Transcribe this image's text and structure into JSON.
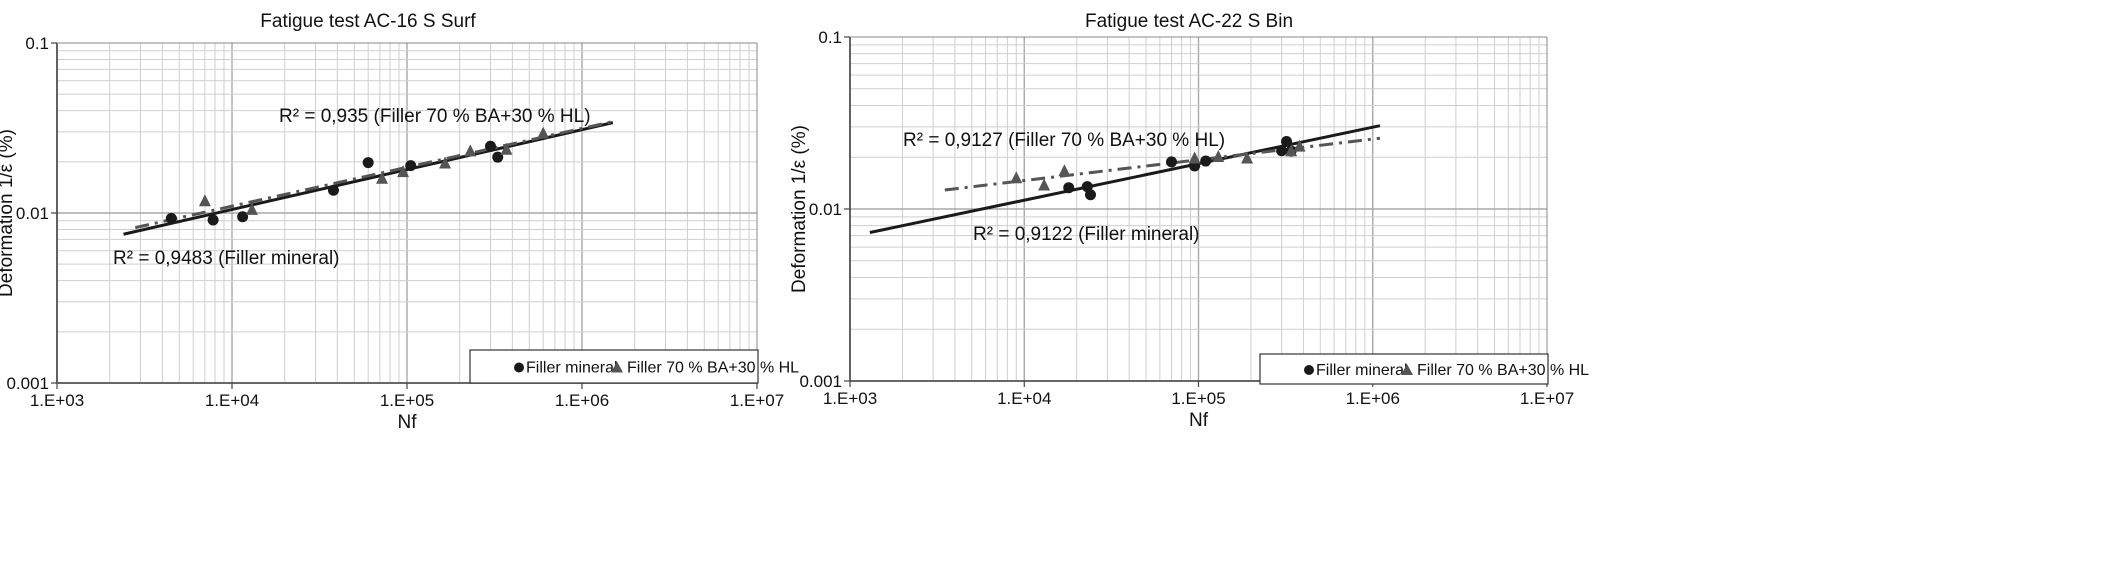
{
  "chart_data": [
    {
      "type": "scatter",
      "title": "Fatigue test   AC-16 S Surf",
      "xlabel": "Nf",
      "ylabel": "Deformation 1/ε (%)",
      "xscale": "log",
      "yscale": "log",
      "xlim": [
        1000,
        10000000
      ],
      "ylim": [
        0.001,
        0.1
      ],
      "x_ticks": [
        "1.E+03",
        "1.E+04",
        "1.E+05",
        "1.E+06",
        "1.E+07"
      ],
      "y_ticks": [
        "0.001",
        "0.01",
        "0.1"
      ],
      "grid": true,
      "legend_position": "bottom-right",
      "series": [
        {
          "name": "Filler mineral",
          "marker": "circle",
          "color": "#1a1a1a",
          "points": [
            [
              4500,
              0.0093
            ],
            [
              7800,
              0.0091
            ],
            [
              11500,
              0.0095
            ],
            [
              38000,
              0.0136
            ],
            [
              60000,
              0.0198
            ],
            [
              105000,
              0.019
            ],
            [
              300000,
              0.0247
            ],
            [
              330000,
              0.0213
            ]
          ],
          "trendline": {
            "x_start": 2400,
            "y_start": 0.0075,
            "x_end": 1500000,
            "y_end": 0.034,
            "style": "solid",
            "color": "#1a1a1a"
          },
          "r2_label": "R² = 0,9483 (Filler mineral)"
        },
        {
          "name": "Filler 70 % BA+30 % HL",
          "marker": "triangle",
          "color": "#555555",
          "points": [
            [
              7000,
              0.0118
            ],
            [
              13000,
              0.0105
            ],
            [
              72000,
              0.016
            ],
            [
              95000,
              0.0175
            ],
            [
              165000,
              0.0197
            ],
            [
              230000,
              0.0232
            ],
            [
              370000,
              0.0237
            ],
            [
              600000,
              0.0295
            ]
          ],
          "trendline": {
            "x_start": 2800,
            "y_start": 0.0082,
            "x_end": 1500000,
            "y_end": 0.0345,
            "style": "dash-dot",
            "color": "#555555"
          },
          "r2_label": "R² = 0,935 (Filler 70 % BA+30 % HL)"
        }
      ]
    },
    {
      "type": "scatter",
      "title": "Fatigue test   AC-22 S Bin",
      "xlabel": "Nf",
      "ylabel": "Deformation 1/ε (%)",
      "xscale": "log",
      "yscale": "log",
      "xlim": [
        1000,
        10000000
      ],
      "ylim": [
        0.001,
        0.1
      ],
      "x_ticks": [
        "1.E+03",
        "1.E+04",
        "1.E+05",
        "1.E+06",
        "1.E+07"
      ],
      "y_ticks": [
        "0.001",
        "0.01",
        "0.1"
      ],
      "grid": true,
      "legend_position": "bottom-right",
      "series": [
        {
          "name": "Filler mineral",
          "marker": "circle",
          "color": "#1a1a1a",
          "points": [
            [
              18000,
              0.0133
            ],
            [
              23000,
              0.0135
            ],
            [
              24000,
              0.0121
            ],
            [
              70000,
              0.0188
            ],
            [
              95000,
              0.0178
            ],
            [
              110000,
              0.019
            ],
            [
              300000,
              0.0218
            ],
            [
              320000,
              0.0247
            ],
            [
              340000,
              0.0217
            ]
          ],
          "trendline": {
            "x_start": 1300,
            "y_start": 0.0073,
            "x_end": 1100000,
            "y_end": 0.0305,
            "style": "solid",
            "color": "#1a1a1a"
          },
          "r2_label": "R² = 0,9122 (Filler mineral)"
        },
        {
          "name": "Filler 70 % BA+30 % HL",
          "marker": "triangle",
          "color": "#555555",
          "points": [
            [
              9000,
              0.0152
            ],
            [
              13000,
              0.0138
            ],
            [
              17000,
              0.0167
            ],
            [
              95000,
              0.0198
            ],
            [
              130000,
              0.0202
            ],
            [
              190000,
              0.0198
            ],
            [
              340000,
              0.0218
            ],
            [
              380000,
              0.0232
            ]
          ],
          "trendline": {
            "x_start": 3500,
            "y_start": 0.0129,
            "x_end": 1100000,
            "y_end": 0.0258,
            "style": "dash-dot",
            "color": "#555555"
          },
          "r2_label": "R² = 0,9127 (Filler 70 % BA+30 % HL)"
        }
      ]
    }
  ]
}
